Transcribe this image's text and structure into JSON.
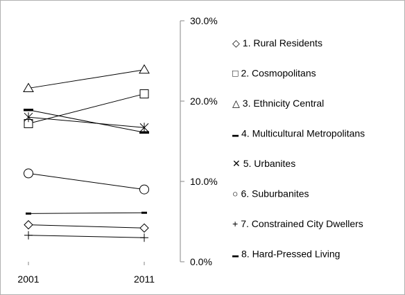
{
  "chart_data": {
    "type": "line",
    "title": "",
    "xlabel": "",
    "ylabel": "",
    "categories": [
      "2001",
      "2011"
    ],
    "y_axis": {
      "position": "right",
      "ylim": [
        0,
        30
      ],
      "ticks": [
        {
          "value": 0,
          "label": "0.0%"
        },
        {
          "value": 10,
          "label": "10.0%"
        },
        {
          "value": 20,
          "label": "20.0%"
        },
        {
          "value": 30,
          "label": "30.0%"
        }
      ]
    },
    "grid": false,
    "legend_placement": "right",
    "series": [
      {
        "name": "1. Rural Residents",
        "marker": "diamond",
        "marker_symbol": "◇",
        "values": [
          4.6,
          4.2
        ]
      },
      {
        "name": "2. Cosmopolitans",
        "marker": "square",
        "marker_symbol": "□",
        "values": [
          17.2,
          20.9
        ]
      },
      {
        "name": "3. Ethnicity Central",
        "marker": "triangle",
        "marker_symbol": "△",
        "values": [
          21.6,
          23.9
        ]
      },
      {
        "name": "4. Multicultural Metropolitans",
        "marker": "dash",
        "marker_symbol": "▬",
        "values": [
          18.9,
          16.1
        ]
      },
      {
        "name": "5. Urbanites",
        "marker": "star",
        "marker_symbol": "✕",
        "values": [
          18.0,
          16.7
        ]
      },
      {
        "name": "6. Suburbanites",
        "marker": "circle",
        "marker_symbol": "○",
        "values": [
          11.0,
          9.0
        ]
      },
      {
        "name": "7. Constrained City Dwellers",
        "marker": "plus",
        "marker_symbol": "+",
        "values": [
          3.3,
          3.0
        ]
      },
      {
        "name": "8. Hard-Pressed Living",
        "marker": "short-dash",
        "marker_symbol": "▬",
        "values": [
          6.0,
          6.1
        ]
      }
    ],
    "colors": {
      "line": "#000000",
      "axis": "#868686",
      "background": "#ffffff"
    }
  }
}
